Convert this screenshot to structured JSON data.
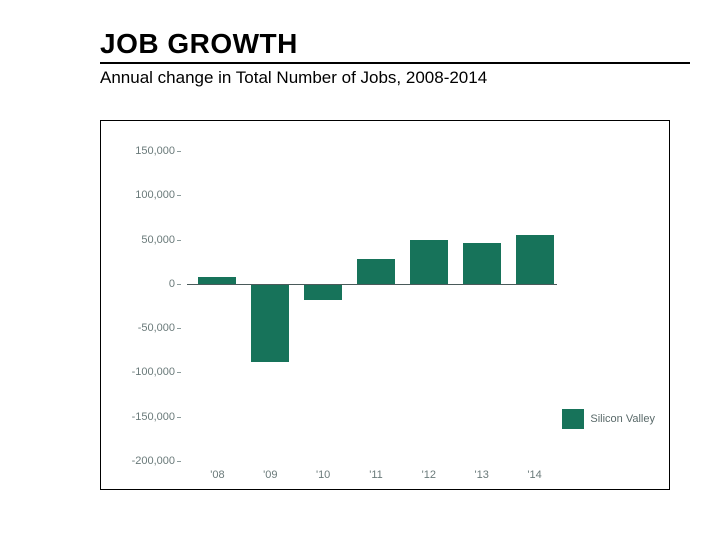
{
  "header": {
    "title": "JOB GROWTH",
    "subtitle": "Annual change in Total Number of Jobs, 2008-2014"
  },
  "chart": {
    "type": "bar",
    "categories": [
      "'08",
      "'09",
      "'10",
      "'11",
      "'12",
      "'13",
      "'14"
    ],
    "values": [
      8000,
      -88000,
      -18000,
      28000,
      50000,
      46000,
      55000
    ],
    "bar_color": "#17735a",
    "background_color": "#ffffff",
    "axis_color": "#8a9a9a",
    "tick_label_color": "#6a7a7a",
    "tick_fontsize": 11,
    "ylim": [
      -200000,
      150000
    ],
    "ytick_step": 50000,
    "ytick_labels": [
      "-200,000",
      "-150,000",
      "-100,000",
      "-50,000",
      "0",
      "50,000",
      "100,000",
      "150,000"
    ],
    "ytick_values": [
      -200000,
      -150000,
      -100000,
      -50000,
      0,
      50000,
      100000,
      150000
    ],
    "bar_width": 0.72,
    "legend": {
      "label": "Silicon Valley",
      "swatch_color": "#17735a"
    }
  }
}
